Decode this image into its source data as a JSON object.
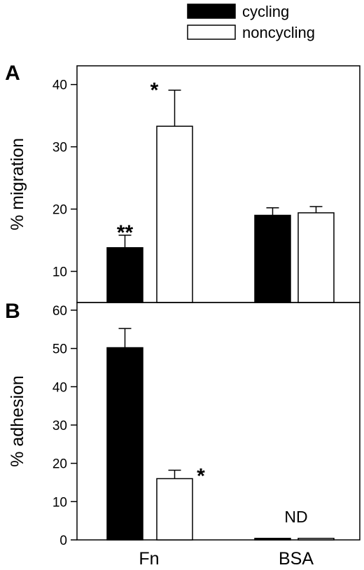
{
  "chart_data": [
    {
      "type": "bar",
      "panel_label": "A",
      "ylabel": "% migration",
      "ylim": [
        5,
        43
      ],
      "yticks": [
        10,
        20,
        30,
        40
      ],
      "categories": [
        "Fn",
        "BSA"
      ],
      "series": [
        {
          "name": "cycling",
          "values": [
            13.8,
            19.0
          ],
          "errors": [
            2.0,
            1.2
          ],
          "fill": "#000000"
        },
        {
          "name": "noncycling",
          "values": [
            33.3,
            19.4
          ],
          "errors": [
            5.8,
            1.0
          ],
          "fill": "#ffffff"
        }
      ],
      "annotations": [
        {
          "series": 0,
          "category": 0,
          "text": "**"
        },
        {
          "series": 1,
          "category": 0,
          "text": "*"
        }
      ]
    },
    {
      "type": "bar",
      "panel_label": "B",
      "ylabel": "% adhesion",
      "ylim": [
        0,
        62
      ],
      "yticks": [
        0,
        10,
        20,
        30,
        40,
        50,
        60
      ],
      "categories": [
        "Fn",
        "BSA"
      ],
      "series": [
        {
          "name": "cycling",
          "values": [
            50.2,
            0.4
          ],
          "errors": [
            5.0,
            0
          ],
          "fill": "#000000"
        },
        {
          "name": "noncycling",
          "values": [
            16.0,
            0.4
          ],
          "errors": [
            2.2,
            0
          ],
          "fill": "#ffffff"
        }
      ],
      "annotations": [
        {
          "series": 1,
          "category": 0,
          "text": "*"
        },
        {
          "category": 1,
          "text": "ND",
          "at_value": 6
        }
      ]
    }
  ],
  "legend": {
    "placement": "top",
    "items": [
      {
        "label": "cycling",
        "fill": "#000000"
      },
      {
        "label": "noncycling",
        "fill": "#ffffff"
      }
    ]
  }
}
